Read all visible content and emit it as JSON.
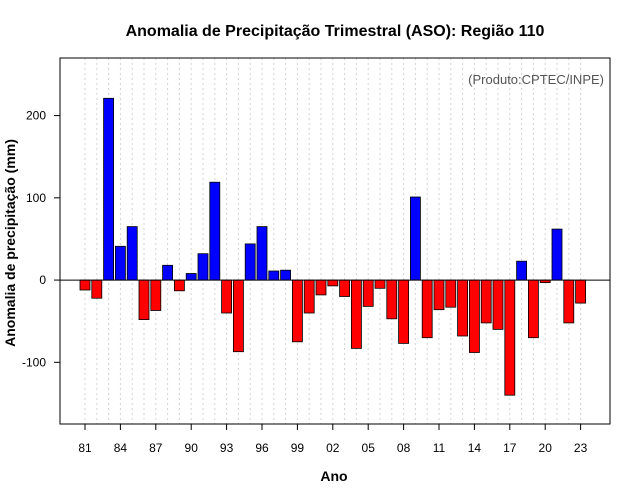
{
  "chart_data": {
    "type": "bar",
    "title": "Anomalia de Precipitação Trimestral (ASO): Região 110",
    "xlabel": "Ano",
    "ylabel": "Anomalia de precipitação (mm)",
    "credit": "(Produto:CPTEC/INPE)",
    "ylim": [
      -175,
      270
    ],
    "y_ticks": [
      -100,
      0,
      100,
      200
    ],
    "x_tick_labels": [
      "81",
      "84",
      "87",
      "90",
      "93",
      "96",
      "99",
      "02",
      "05",
      "08",
      "11",
      "14",
      "17",
      "20",
      "23"
    ],
    "categories": [
      "1981",
      "1982",
      "1983",
      "1984",
      "1985",
      "1986",
      "1987",
      "1988",
      "1989",
      "1990",
      "1991",
      "1992",
      "1993",
      "1994",
      "1995",
      "1996",
      "1997",
      "1998",
      "1999",
      "2000",
      "2001",
      "2002",
      "2003",
      "2004",
      "2005",
      "2006",
      "2007",
      "2008",
      "2009",
      "2010",
      "2011",
      "2012",
      "2013",
      "2014",
      "2015",
      "2016",
      "2017",
      "2018",
      "2019",
      "2020",
      "2021",
      "2022",
      "2023"
    ],
    "values": [
      -12,
      -22,
      221,
      41,
      65,
      -48,
      -37,
      18,
      -13,
      8,
      32,
      119,
      -40,
      -87,
      44,
      65,
      11,
      12,
      -75,
      -40,
      -18,
      -7,
      -20,
      -83,
      -32,
      -10,
      -47,
      -77,
      101,
      -70,
      -36,
      -33,
      -68,
      -88,
      -52,
      -60,
      -140,
      23,
      -70,
      -3,
      62,
      -52,
      -28
    ],
    "colors": {
      "positive": "#0000ff",
      "negative": "#ff0000",
      "zero_line": "#000000",
      "grid": "#d3d3d3"
    },
    "grid": true
  }
}
